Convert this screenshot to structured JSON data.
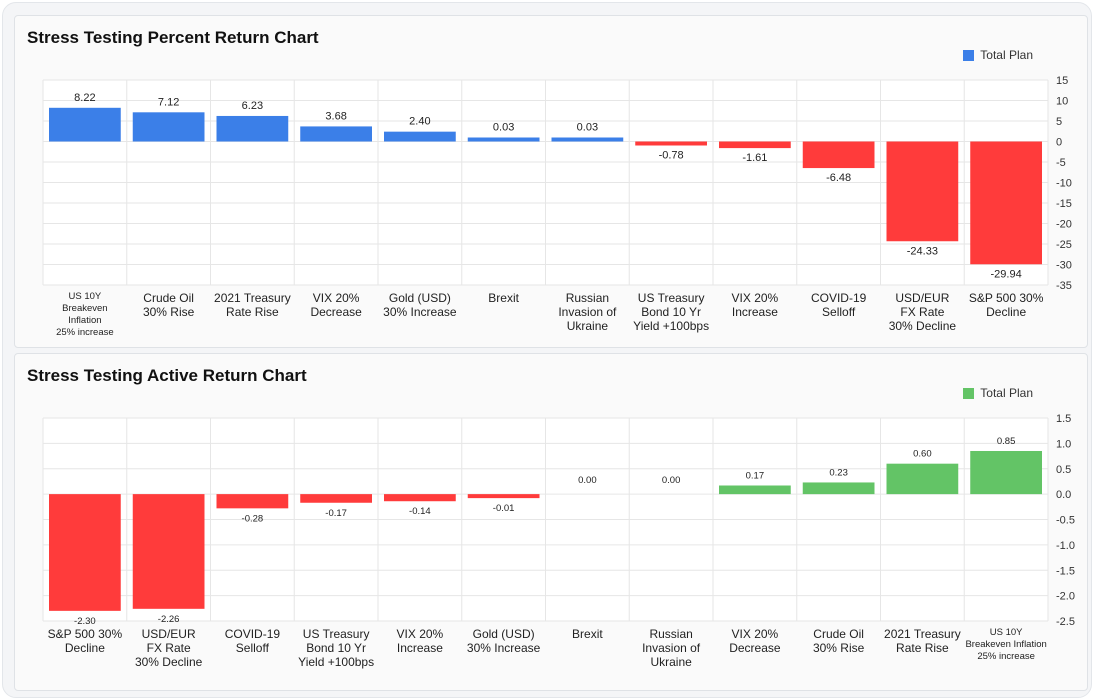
{
  "charts": [
    {
      "title": "Stress Testing Percent Return Chart",
      "legend_label": "Total Plan",
      "color_positive": "#3b7fe8",
      "color_negative": "#ff3b3b",
      "chart_data": {
        "type": "bar",
        "title": "Stress Testing Percent Return Chart",
        "categories": [
          "US 10Y\nBreakeven\nInflation\n25% increase",
          "Crude Oil\n30% Rise",
          "2021 Treasury\nRate Rise",
          "VIX 20%\nDecrease",
          "Gold (USD)\n30% Increase",
          "Brexit",
          "Russian\nInvasion of\nUkraine",
          "US Treasury\nBond 10 Yr\nYield +100bps",
          "VIX 20%\nIncrease",
          "COVID-19\nSelloff",
          "USD/EUR\nFX Rate\n30% Decline",
          "S&P 500 30%\nDecline"
        ],
        "series": [
          {
            "name": "Total Plan",
            "values": [
              8.22,
              7.12,
              6.23,
              3.68,
              2.4,
              0.03,
              0.03,
              -0.78,
              -1.61,
              -6.48,
              -24.33,
              -29.94
            ]
          }
        ],
        "value_labels": [
          "8.22",
          "7.12",
          "6.23",
          "3.68",
          "2.40",
          "0.03",
          "0.03",
          "-0.78",
          "-1.61",
          "-6.48",
          "-24.33",
          "-29.94"
        ],
        "ylim": [
          -35,
          15
        ],
        "yticks": [
          15,
          10,
          5,
          0,
          -5,
          -10,
          -15,
          -20,
          -25,
          -30,
          -35
        ],
        "ytick_labels": [
          "15",
          "10",
          "5",
          "0",
          "-5",
          "-10",
          "-15",
          "-20",
          "-25",
          "-30",
          "-35"
        ],
        "grid": true,
        "legend": "top-right"
      }
    },
    {
      "title": "Stress Testing Active Return Chart",
      "legend_label": "Total Plan",
      "color_positive": "#63c466",
      "color_negative": "#ff3b3b",
      "chart_data": {
        "type": "bar",
        "title": "Stress Testing Active Return Chart",
        "categories": [
          "S&P 500 30%\nDecline",
          "USD/EUR\nFX Rate\n30% Decline",
          "COVID-19\nSelloff",
          "US Treasury\nBond 10 Yr\nYield +100bps",
          "VIX 20%\nIncrease",
          "Gold (USD)\n30% Increase",
          "Brexit",
          "Russian\nInvasion of\nUkraine",
          "VIX 20%\nDecrease",
          "Crude Oil\n30% Rise",
          "2021 Treasury\nRate Rise",
          "US 10Y\nBreakeven Inflation\n25% increase"
        ],
        "series": [
          {
            "name": "Total Plan",
            "values": [
              -2.3,
              -2.26,
              -0.28,
              -0.17,
              -0.14,
              -0.01,
              0.0,
              0.0,
              0.17,
              0.23,
              0.6,
              0.85
            ]
          }
        ],
        "value_labels": [
          "-2.30",
          "-2.26",
          "-0.28",
          "-0.17",
          "-0.14",
          "-0.01",
          "0.00",
          "0.00",
          "0.17",
          "0.23",
          "0.60",
          "0.85"
        ],
        "ylim": [
          -2.5,
          1.5
        ],
        "yticks": [
          1.5,
          1.0,
          0.5,
          0.0,
          -0.5,
          -1.0,
          -1.5,
          -2.0,
          -2.5
        ],
        "ytick_labels": [
          "1.5",
          "1.0",
          "0.5",
          "0.0",
          "-0.5",
          "-1.0",
          "-1.5",
          "-2.0",
          "-2.5"
        ],
        "grid": true,
        "legend": "top-right"
      }
    }
  ]
}
